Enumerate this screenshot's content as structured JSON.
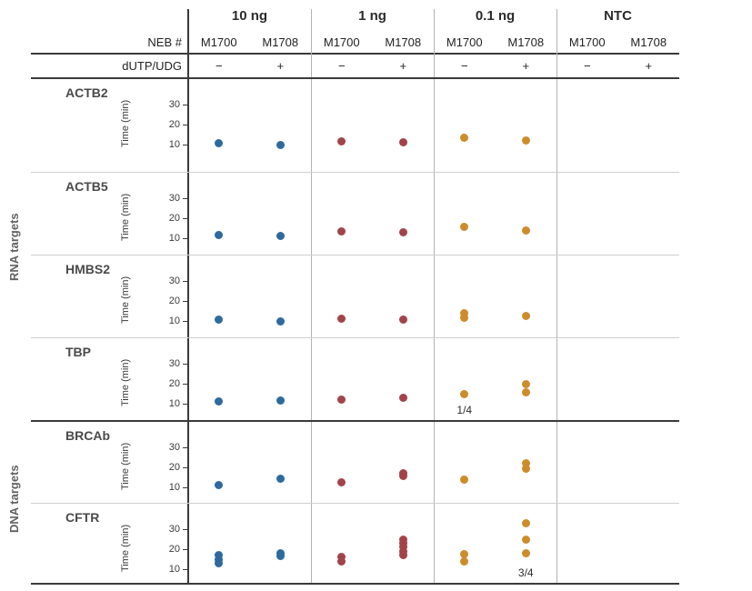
{
  "chart_data": {
    "type": "scatter",
    "title": "",
    "ylabel": "Time (min)",
    "yticks": [
      "30",
      "20",
      "10"
    ],
    "ylim": [
      0,
      42
    ],
    "grid": "off",
    "legend": "none",
    "concentration_groups": [
      {
        "label": "10 ng",
        "dot_color": "#2e6a9e"
      },
      {
        "label": "1 ng",
        "dot_color": "#a2434b"
      },
      {
        "label": "0.1 ng",
        "dot_color": "#cd8c2b"
      },
      {
        "label": "NTC",
        "dot_color": "#999999"
      }
    ],
    "header": {
      "neb_label": "NEB #",
      "neb_columns": [
        "M1700",
        "M1708"
      ],
      "dutp_label": "dUTP/UDG",
      "dutp_values": [
        "−",
        "+"
      ]
    },
    "row_groups": [
      {
        "label": "RNA targets",
        "targets": [
          "ACTB2",
          "ACTB5",
          "HMBS2",
          "TBP"
        ]
      },
      {
        "label": "DNA targets",
        "targets": [
          "BRCAb",
          "CFTR"
        ]
      }
    ],
    "rows": [
      {
        "target": "ACTB2",
        "series": [
          {
            "concentration": "10 ng",
            "M1700": [
              10.5
            ],
            "M1708": [
              10
            ]
          },
          {
            "concentration": "1 ng",
            "M1700": [
              11.5
            ],
            "M1708": [
              11
            ]
          },
          {
            "concentration": "0.1 ng",
            "M1700": [
              13.5
            ],
            "M1708": [
              12
            ]
          },
          {
            "concentration": "NTC",
            "M1700": [],
            "M1708": []
          }
        ],
        "notes": []
      },
      {
        "target": "ACTB5",
        "series": [
          {
            "concentration": "10 ng",
            "M1700": [
              11.5
            ],
            "M1708": [
              11
            ]
          },
          {
            "concentration": "1 ng",
            "M1700": [
              13.5
            ],
            "M1708": [
              13
            ]
          },
          {
            "concentration": "0.1 ng",
            "M1700": [
              15.5
            ],
            "M1708": [
              14
            ]
          },
          {
            "concentration": "NTC",
            "M1700": [],
            "M1708": []
          }
        ],
        "notes": []
      },
      {
        "target": "HMBS2",
        "series": [
          {
            "concentration": "10 ng",
            "M1700": [
              10.5
            ],
            "M1708": [
              10
            ]
          },
          {
            "concentration": "1 ng",
            "M1700": [
              11
            ],
            "M1708": [
              10.5
            ]
          },
          {
            "concentration": "0.1 ng",
            "M1700": [
              14,
              11.5
            ],
            "M1708": [
              12.5
            ]
          },
          {
            "concentration": "NTC",
            "M1700": [],
            "M1708": []
          }
        ],
        "notes": []
      },
      {
        "target": "TBP",
        "series": [
          {
            "concentration": "10 ng",
            "M1700": [
              11
            ],
            "M1708": [
              11.5
            ]
          },
          {
            "concentration": "1 ng",
            "M1700": [
              12
            ],
            "M1708": [
              13
            ]
          },
          {
            "concentration": "0.1 ng",
            "M1700": [
              15
            ],
            "M1708": [
              20,
              15.5
            ]
          },
          {
            "concentration": "NTC",
            "M1700": [],
            "M1708": []
          }
        ],
        "notes": [
          {
            "concentration": "0.1 ng",
            "column": "M1700",
            "text": "1/4"
          }
        ]
      },
      {
        "target": "BRCAb",
        "series": [
          {
            "concentration": "10 ng",
            "M1700": [
              11
            ],
            "M1708": [
              14.5
            ]
          },
          {
            "concentration": "1 ng",
            "M1700": [
              12.5
            ],
            "M1708": [
              17,
              15.5
            ]
          },
          {
            "concentration": "0.1 ng",
            "M1700": [
              14
            ],
            "M1708": [
              22,
              19.5
            ]
          },
          {
            "concentration": "NTC",
            "M1700": [],
            "M1708": []
          }
        ],
        "notes": []
      },
      {
        "target": "CFTR",
        "series": [
          {
            "concentration": "10 ng",
            "M1700": [
              17,
              15,
              13
            ],
            "M1708": [
              18,
              16.5
            ]
          },
          {
            "concentration": "1 ng",
            "M1700": [
              16,
              14
            ],
            "M1708": [
              25,
              23,
              21,
              19,
              17
            ]
          },
          {
            "concentration": "0.1 ng",
            "M1700": [
              17.5,
              14
            ],
            "M1708": [
              33,
              25,
              18
            ]
          },
          {
            "concentration": "NTC",
            "M1700": [],
            "M1708": []
          }
        ],
        "notes": [
          {
            "concentration": "0.1 ng",
            "column": "M1708",
            "text": "3/4"
          }
        ]
      }
    ]
  }
}
